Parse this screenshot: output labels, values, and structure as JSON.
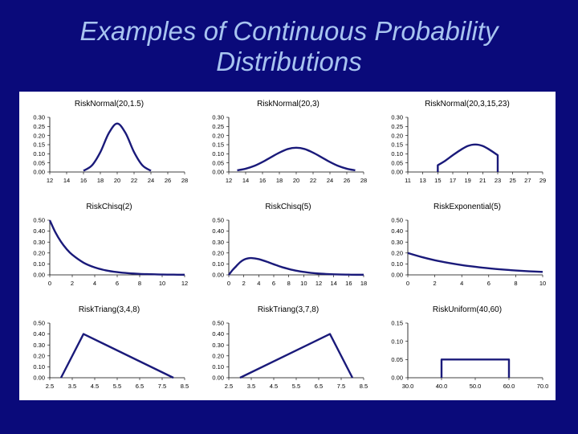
{
  "page": {
    "title_line1": "Examples of Continuous Probability",
    "title_line2": "Distributions"
  },
  "colors": {
    "background": "#0a0a7a",
    "title": "#a8c4f0",
    "curve": "#1a1a7a",
    "panel": "#ffffff"
  },
  "chart_data": [
    {
      "type": "line",
      "title": "RiskNormal(20,1.5)",
      "xlim": [
        12,
        28
      ],
      "ylim": [
        0,
        0.3
      ],
      "xticks": [
        "12",
        "14",
        "16",
        "18",
        "20",
        "22",
        "24",
        "26",
        "28"
      ],
      "yticks": [
        "0.30",
        "0.25",
        "0.20",
        "0.15",
        "0.10",
        "0.05",
        "0.00"
      ],
      "x": [
        16,
        17,
        18,
        19,
        20,
        21,
        22,
        23,
        24
      ],
      "y": [
        0.007,
        0.036,
        0.109,
        0.213,
        0.266,
        0.213,
        0.109,
        0.036,
        0.007
      ]
    },
    {
      "type": "line",
      "title": "RiskNormal(20,3)",
      "xlim": [
        12,
        28
      ],
      "ylim": [
        0,
        0.3
      ],
      "xticks": [
        "12",
        "14",
        "16",
        "18",
        "20",
        "22",
        "24",
        "26",
        "28"
      ],
      "yticks": [
        "0.30",
        "0.25",
        "0.20",
        "0.15",
        "0.10",
        "0.05",
        "0.00"
      ],
      "x": [
        13,
        14,
        15,
        16,
        17,
        18,
        19,
        20,
        21,
        22,
        23,
        24,
        25,
        26,
        27
      ],
      "y": [
        0.009,
        0.018,
        0.033,
        0.055,
        0.081,
        0.106,
        0.126,
        0.133,
        0.126,
        0.106,
        0.081,
        0.055,
        0.033,
        0.018,
        0.009
      ]
    },
    {
      "type": "line",
      "title": "RiskNormal(20,3,15,23)",
      "xlim": [
        11,
        29
      ],
      "ylim": [
        0,
        0.3
      ],
      "xticks": [
        "11",
        "13",
        "15",
        "17",
        "19",
        "21",
        "23",
        "25",
        "27",
        "29"
      ],
      "yticks": [
        "0.30",
        "0.25",
        "0.20",
        "0.15",
        "0.10",
        "0.05",
        "0.00"
      ],
      "x": [
        15,
        15,
        16,
        17,
        18,
        19,
        20,
        21,
        22,
        23,
        23
      ],
      "y": [
        0,
        0.037,
        0.062,
        0.092,
        0.12,
        0.143,
        0.151,
        0.143,
        0.12,
        0.092,
        0
      ]
    },
    {
      "type": "line",
      "title": "RiskChisq(2)",
      "xlim": [
        0,
        12
      ],
      "ylim": [
        0,
        0.5
      ],
      "xticks": [
        "0",
        "2",
        "4",
        "6",
        "8",
        "10",
        "12"
      ],
      "yticks": [
        "0.50",
        "0.40",
        "0.30",
        "0.20",
        "0.10",
        "0.00"
      ],
      "x": [
        0,
        0.5,
        1,
        1.5,
        2,
        3,
        4,
        5,
        6,
        7,
        8,
        9,
        10,
        11,
        12
      ],
      "y": [
        0.5,
        0.389,
        0.303,
        0.236,
        0.184,
        0.112,
        0.068,
        0.041,
        0.025,
        0.015,
        0.009,
        0.006,
        0.003,
        0.002,
        0.001
      ]
    },
    {
      "type": "line",
      "title": "RiskChisq(5)",
      "xlim": [
        0,
        18
      ],
      "ylim": [
        0,
        0.5
      ],
      "xticks": [
        "0",
        "2",
        "4",
        "6",
        "8",
        "10",
        "12",
        "14",
        "16",
        "18"
      ],
      "yticks": [
        "0.50",
        "0.40",
        "0.30",
        "0.20",
        "0.10",
        "0.00"
      ],
      "x": [
        0,
        0.5,
        1,
        1.5,
        2,
        2.5,
        3,
        4,
        5,
        6,
        7,
        8,
        9,
        10,
        11,
        12,
        13,
        14,
        15,
        16,
        17,
        18
      ],
      "y": [
        0,
        0.044,
        0.08,
        0.115,
        0.138,
        0.15,
        0.154,
        0.144,
        0.122,
        0.097,
        0.073,
        0.054,
        0.038,
        0.027,
        0.018,
        0.012,
        0.008,
        0.005,
        0.003,
        0.002,
        0.001,
        0.001
      ]
    },
    {
      "type": "line",
      "title": "RiskExponential(5)",
      "xlim": [
        0,
        10
      ],
      "ylim": [
        0,
        0.5
      ],
      "xticks": [
        "0",
        "2",
        "4",
        "6",
        "8",
        "10"
      ],
      "yticks": [
        "0.50",
        "0.40",
        "0.30",
        "0.20",
        "0.10",
        "0.00"
      ],
      "x": [
        0,
        1,
        2,
        3,
        4,
        5,
        6,
        7,
        8,
        9,
        10
      ],
      "y": [
        0.2,
        0.164,
        0.134,
        0.11,
        0.09,
        0.074,
        0.06,
        0.049,
        0.04,
        0.033,
        0.027
      ]
    },
    {
      "type": "line",
      "title": "RiskTriang(3,4,8)",
      "xlim": [
        2.5,
        8.5
      ],
      "ylim": [
        0,
        0.5
      ],
      "xticks": [
        "2.5",
        "3.5",
        "4.5",
        "5.5",
        "6.5",
        "7.5",
        "8.5"
      ],
      "yticks": [
        "0.50",
        "0.40",
        "0.30",
        "0.20",
        "0.10",
        "0.00"
      ],
      "x": [
        3,
        4,
        8
      ],
      "y": [
        0,
        0.4,
        0
      ]
    },
    {
      "type": "line",
      "title": "RiskTriang(3,7,8)",
      "xlim": [
        2.5,
        8.5
      ],
      "ylim": [
        0,
        0.5
      ],
      "xticks": [
        "2.5",
        "3.5",
        "4.5",
        "5.5",
        "6.5",
        "7.5",
        "8.5"
      ],
      "yticks": [
        "0.50",
        "0.40",
        "0.30",
        "0.20",
        "0.10",
        "0.00"
      ],
      "x": [
        3,
        7,
        8
      ],
      "y": [
        0,
        0.4,
        0
      ]
    },
    {
      "type": "line",
      "title": "RiskUniform(40,60)",
      "xlim": [
        30,
        70
      ],
      "ylim": [
        0,
        0.15
      ],
      "xticks": [
        "30.0",
        "40.0",
        "50.0",
        "60.0",
        "70.0"
      ],
      "yticks": [
        "0.15",
        "0.10",
        "0.05",
        "0.00"
      ],
      "x": [
        40,
        40,
        60,
        60
      ],
      "y": [
        0,
        0.05,
        0.05,
        0
      ]
    }
  ]
}
